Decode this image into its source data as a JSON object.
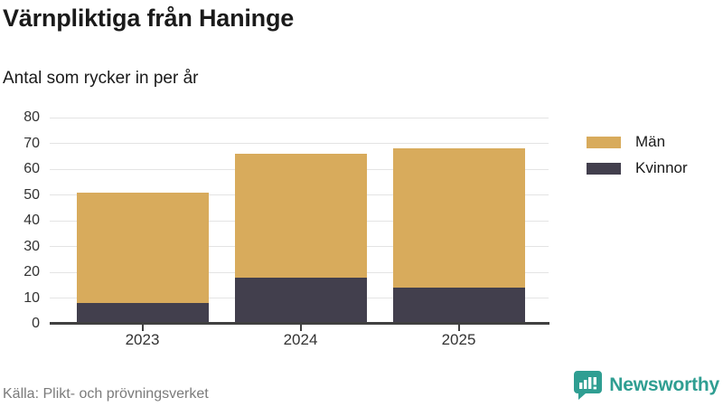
{
  "header": {
    "title": "Värnpliktiga från Haninge",
    "subtitle": "Antal som rycker in per år"
  },
  "chart_data": {
    "type": "bar",
    "stacked": true,
    "title": "Värnpliktiga från Haninge",
    "subtitle": "Antal som rycker in per år",
    "categories": [
      "2023",
      "2024",
      "2025"
    ],
    "series": [
      {
        "name": "Män",
        "color": "#d8ab5c",
        "values": [
          43,
          48,
          54
        ]
      },
      {
        "name": "Kvinnor",
        "color": "#423f4d",
        "values": [
          8,
          18,
          14
        ]
      }
    ],
    "stack_totals": [
      51,
      66,
      68
    ],
    "xlabel": "",
    "ylabel": "",
    "ylim": [
      0,
      80
    ],
    "yticks": [
      0,
      10,
      20,
      30,
      40,
      50,
      60,
      70,
      80
    ],
    "grid": true,
    "legend_position": "right"
  },
  "footer": {
    "source": "Källa: Plikt- och prövningsverket",
    "brand": "Newsworthy"
  },
  "colors": {
    "men_gold": "#d8ab5c",
    "women_dark": "#423f4d",
    "grid": "#e4e4e4",
    "axis": "#404040",
    "brand_teal": "#2f9e92",
    "muted_text": "#7b7b7b"
  }
}
